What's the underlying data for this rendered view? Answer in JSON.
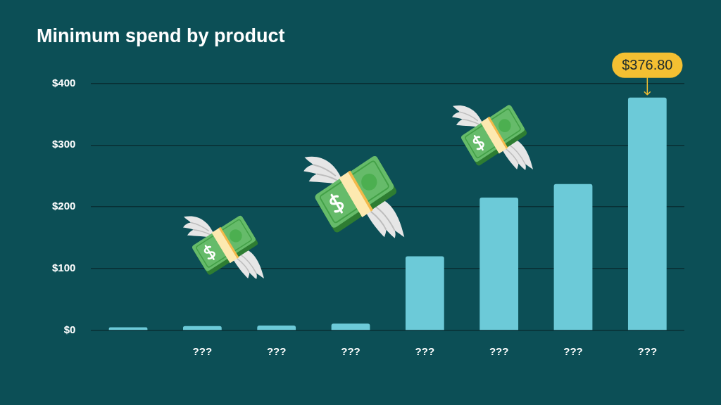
{
  "chart_data": {
    "type": "bar",
    "title": "Minimum spend by product",
    "categories": [
      null,
      "???",
      "???",
      "???",
      "???",
      "???",
      "???",
      "???"
    ],
    "values": [
      5,
      7,
      8,
      11,
      120,
      215,
      237,
      376.8
    ],
    "color": "#6ccad8",
    "value_labels": [
      null,
      null,
      null,
      null,
      null,
      null,
      null,
      "$376.80"
    ],
    "ylim": [
      0,
      400
    ],
    "yticks": [
      {
        "value": 0,
        "label": "$0"
      },
      {
        "value": 100,
        "label": "$100"
      },
      {
        "value": 200,
        "label": "$200"
      },
      {
        "value": 300,
        "label": "$300"
      },
      {
        "value": 400,
        "label": "$400"
      }
    ],
    "grid": "y"
  }
}
